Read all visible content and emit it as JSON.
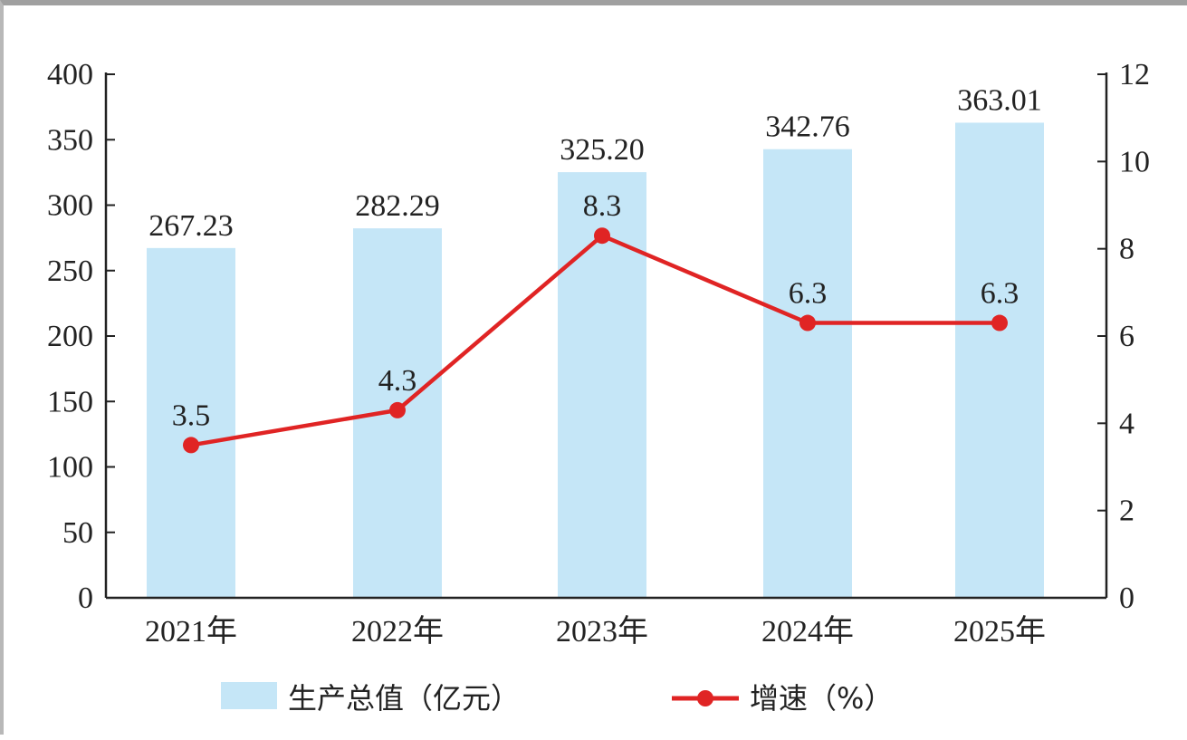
{
  "chart_data": {
    "type": "bar",
    "categories": [
      "2021年",
      "2022年",
      "2023年",
      "2024年",
      "2025年"
    ],
    "series": [
      {
        "name": "生产总值（亿元）",
        "type": "bar",
        "axis": "left",
        "values": [
          267.23,
          282.29,
          325.2,
          342.76,
          363.01
        ],
        "labels": [
          "267.23",
          "282.29",
          "325.20",
          "342.76",
          "363.01"
        ],
        "color": "#c5e6f7"
      },
      {
        "name": "增速（%）",
        "type": "line",
        "axis": "right",
        "values": [
          3.5,
          4.3,
          8.3,
          6.3,
          6.3
        ],
        "labels": [
          "3.5",
          "4.3",
          "8.3",
          "6.3",
          "6.3"
        ],
        "color": "#e02424"
      }
    ],
    "y_left": {
      "min": 0,
      "max": 400,
      "ticks": [
        0,
        50,
        100,
        150,
        200,
        250,
        300,
        350,
        400
      ]
    },
    "y_right": {
      "min": 0,
      "max": 12,
      "ticks": [
        0,
        2,
        4,
        6,
        8,
        10,
        12
      ]
    },
    "legend_position": "bottom-center",
    "grid": false
  }
}
